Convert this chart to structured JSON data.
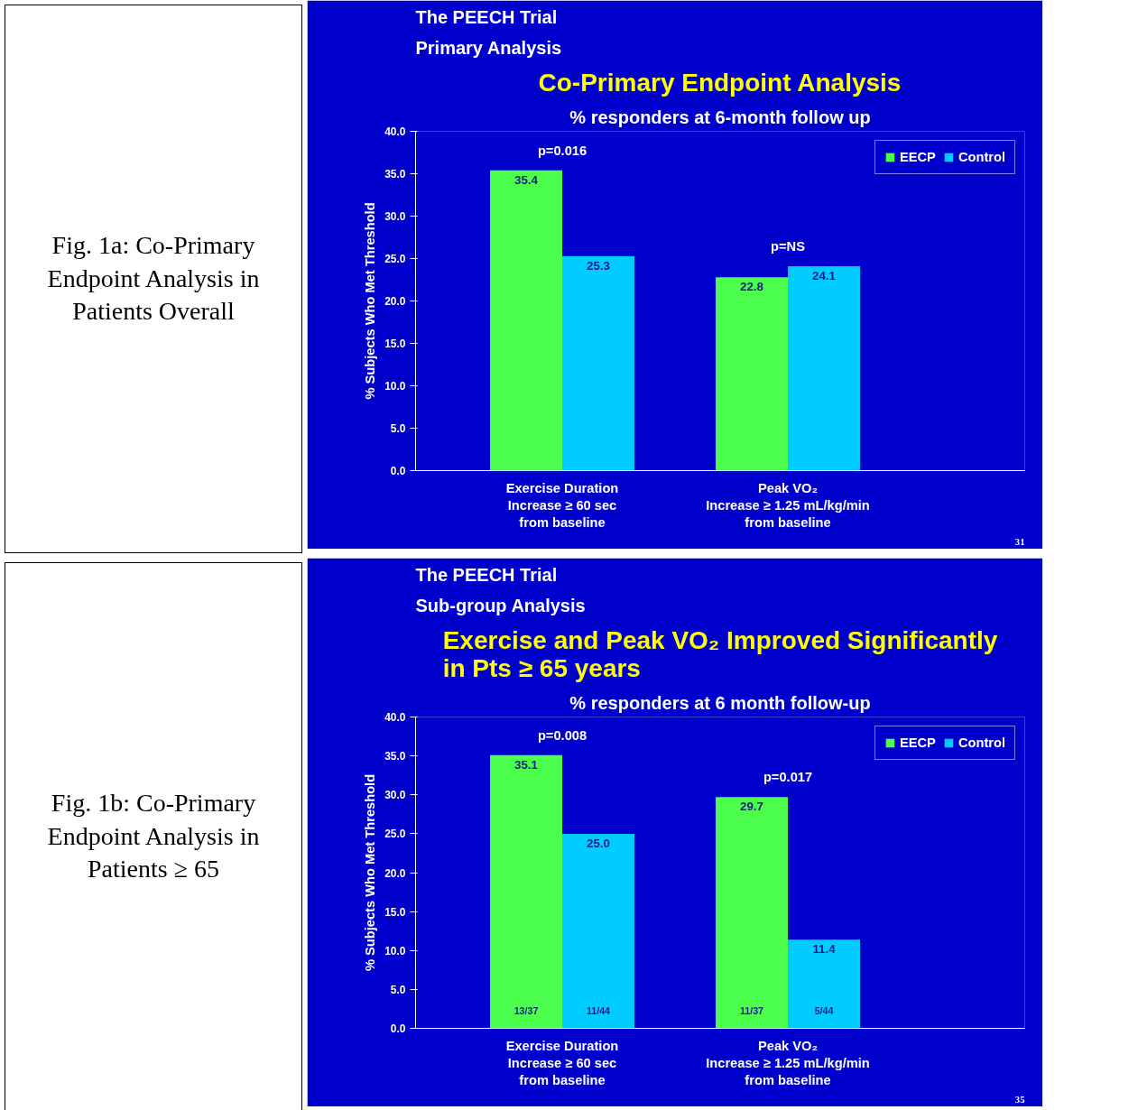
{
  "chart_data": [
    {
      "type": "bar",
      "title": "Co-Primary Endpoint Analysis",
      "subtitle": "% responders at 6-month follow up",
      "ylabel": "% Subjects Who Met Threshold",
      "categories": [
        "Exercise Duration\nIncrease ≥ 60 sec\nfrom baseline",
        "Peak VO₂\nIncrease ≥ 1.25 mL/kg/min\nfrom baseline"
      ],
      "series": [
        {
          "name": "EECP",
          "color": "#4cff4c",
          "values": [
            35.4,
            22.8
          ],
          "value_labels": [
            "35.4",
            "22.8"
          ]
        },
        {
          "name": "Control",
          "color": "#00ccff",
          "values": [
            25.3,
            24.1
          ],
          "value_labels": [
            "25.3",
            "24.1"
          ]
        }
      ],
      "ylim": [
        0,
        40
      ],
      "yticks": [
        {
          "value": 0,
          "label": "0.0"
        },
        {
          "value": 5,
          "label": "5.0"
        },
        {
          "value": 10,
          "label": "10.0"
        },
        {
          "value": 15,
          "label": "15.0"
        },
        {
          "value": 20,
          "label": "20.0"
        },
        {
          "value": 25,
          "label": "25.0"
        },
        {
          "value": 30,
          "label": "30.0"
        },
        {
          "value": 35,
          "label": "35.0"
        },
        {
          "value": 40,
          "label": "40.0"
        }
      ],
      "grid": false,
      "legend": "top right",
      "annotations": [
        "The PEECH Trial",
        "Primary Analysis",
        "Fig. 1a: Co-Primary Endpoint Analysis in Patients Overall",
        "31",
        "p=0.016",
        "p=NS"
      ]
    },
    {
      "type": "bar",
      "title": "Exercise and Peak VO₂ Improved Significantly\nin Pts ≥ 65 years",
      "subtitle": "% responders at 6 month follow-up",
      "ylabel": "% Subjects Who Met Threshold",
      "categories": [
        "Exercise Duration\nIncrease ≥ 60 sec\nfrom baseline",
        "Peak VO₂\nIncrease ≥ 1.25 mL/kg/min\nfrom baseline"
      ],
      "series": [
        {
          "name": "EECP",
          "color": "#4cff4c",
          "values": [
            35.1,
            29.7
          ],
          "value_labels": [
            "35.1",
            "29.7"
          ]
        },
        {
          "name": "Control",
          "color": "#00ccff",
          "values": [
            25.0,
            11.4
          ],
          "value_labels": [
            "25.0",
            "11.4"
          ]
        }
      ],
      "ylim": [
        0,
        40
      ],
      "yticks": [
        {
          "value": 0,
          "label": "0.0"
        },
        {
          "value": 5,
          "label": "5.0"
        },
        {
          "value": 10,
          "label": "10.0"
        },
        {
          "value": 15,
          "label": "15.0"
        },
        {
          "value": 20,
          "label": "20.0"
        },
        {
          "value": 25,
          "label": "25.0"
        },
        {
          "value": 30,
          "label": "30.0"
        },
        {
          "value": 35,
          "label": "35.0"
        },
        {
          "value": 40,
          "label": "40.0"
        }
      ],
      "grid": false,
      "legend": "top right",
      "annotations": [
        "The PEECH Trial",
        "Sub-group Analysis",
        "Fig. 1b: Co-Primary Endpoint Analysis in Patients ≥  65",
        "35",
        "p=0.008",
        "p=0.017",
        "13/37",
        "11/44",
        "11/37",
        "5/44"
      ]
    }
  ]
}
